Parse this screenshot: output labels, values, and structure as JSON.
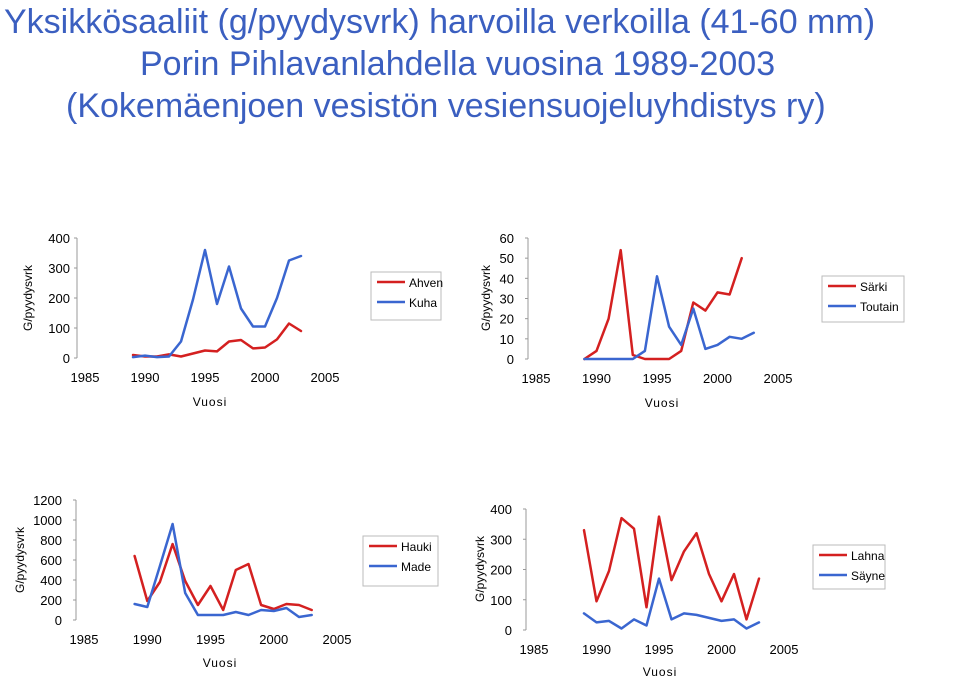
{
  "title_lines": [
    "Yksikkösaaliit (g/pyydysvrk) harvoilla verkoilla (41-60 mm)",
    "Porin Pihlavanlahdella vuosina 1989-2003",
    "(Kokemäenjoen vesistön vesiensuojeluyhdistys ry)"
  ],
  "colors": {
    "title": "#3b5fc0",
    "red": "#d42020",
    "blue": "#3a66d0"
  },
  "chart_data": [
    {
      "type": "line",
      "xlabel": "Vuosi",
      "ylabel": "G/pyydysvrk",
      "xlim": [
        1985,
        2005
      ],
      "ylim": [
        0,
        400
      ],
      "xticks": [
        "1985",
        "1990",
        "1995",
        "2000",
        "2005"
      ],
      "yticks": [
        "0",
        "100",
        "200",
        "300",
        "400"
      ],
      "x": [
        1989,
        1990,
        1991,
        1992,
        1993,
        1994,
        1995,
        1996,
        1997,
        1998,
        1999,
        2000,
        2001,
        2002,
        2003
      ],
      "series": [
        {
          "name": "Ahven",
          "color": "#d42020",
          "values": [
            10,
            5,
            5,
            12,
            5,
            15,
            25,
            22,
            55,
            60,
            32,
            35,
            62,
            115,
            90
          ]
        },
        {
          "name": "Kuha",
          "color": "#3a66d0",
          "values": [
            3,
            8,
            3,
            5,
            55,
            195,
            360,
            180,
            305,
            165,
            105,
            105,
            200,
            325,
            340
          ]
        }
      ],
      "legend": "right"
    },
    {
      "type": "line",
      "xlabel": "Vuosi",
      "ylabel": "G/pyydysvrk",
      "xlim": [
        1985,
        2005
      ],
      "ylim": [
        0,
        60
      ],
      "xticks": [
        "1985",
        "1990",
        "1995",
        "2000",
        "2005"
      ],
      "yticks": [
        "0",
        "10",
        "20",
        "30",
        "40",
        "50",
        "60"
      ],
      "x": [
        1989,
        1990,
        1991,
        1992,
        1993,
        1994,
        1995,
        1996,
        1997,
        1998,
        1999,
        2000,
        2001,
        2002,
        2003
      ],
      "series": [
        {
          "name": "Särki",
          "color": "#d42020",
          "values": [
            0,
            4,
            20,
            54,
            2,
            0,
            0,
            0,
            4,
            28,
            24,
            33,
            32,
            50,
            null
          ]
        },
        {
          "name": "Toutain",
          "color": "#3a66d0",
          "values": [
            0,
            0,
            0,
            0,
            0,
            4,
            41,
            16,
            7,
            25,
            5,
            7,
            11,
            10,
            13
          ]
        }
      ],
      "legend": "right"
    },
    {
      "type": "line",
      "xlabel": "Vuosi",
      "ylabel": "G/pyydysvrk",
      "xlim": [
        1985,
        2005
      ],
      "ylim": [
        0,
        1200
      ],
      "xticks": [
        "1985",
        "1990",
        "1995",
        "2000",
        "2005"
      ],
      "yticks": [
        "0",
        "200",
        "400",
        "600",
        "800",
        "1000",
        "1200"
      ],
      "x": [
        1989,
        1990,
        1991,
        1992,
        1993,
        1994,
        1995,
        1996,
        1997,
        1998,
        1999,
        2000,
        2001,
        2002,
        2003
      ],
      "series": [
        {
          "name": "Hauki",
          "color": "#d42020",
          "values": [
            640,
            190,
            380,
            760,
            390,
            150,
            340,
            100,
            500,
            560,
            150,
            110,
            160,
            150,
            100
          ]
        },
        {
          "name": "Made",
          "color": "#3a66d0",
          "values": [
            160,
            130,
            540,
            960,
            270,
            50,
            50,
            50,
            80,
            50,
            100,
            90,
            120,
            30,
            50
          ]
        }
      ],
      "legend": "right"
    },
    {
      "type": "line",
      "xlabel": "Vuosi",
      "ylabel": "G/pyydysvrk",
      "xlim": [
        1985,
        2005
      ],
      "ylim": [
        0,
        400
      ],
      "xticks": [
        "1985",
        "1990",
        "1995",
        "2000",
        "2005"
      ],
      "yticks": [
        "0",
        "100",
        "200",
        "300",
        "400"
      ],
      "x": [
        1989,
        1990,
        1991,
        1992,
        1993,
        1994,
        1995,
        1996,
        1997,
        1998,
        1999,
        2000,
        2001,
        2002,
        2003
      ],
      "series": [
        {
          "name": "Lahna",
          "color": "#d42020",
          "values": [
            330,
            95,
            195,
            370,
            335,
            75,
            375,
            165,
            260,
            320,
            185,
            95,
            185,
            35,
            170
          ]
        },
        {
          "name": "Säyne",
          "color": "#3a66d0",
          "values": [
            55,
            25,
            30,
            5,
            35,
            15,
            170,
            35,
            55,
            50,
            40,
            30,
            35,
            5,
            25
          ]
        }
      ],
      "legend": "right"
    }
  ]
}
